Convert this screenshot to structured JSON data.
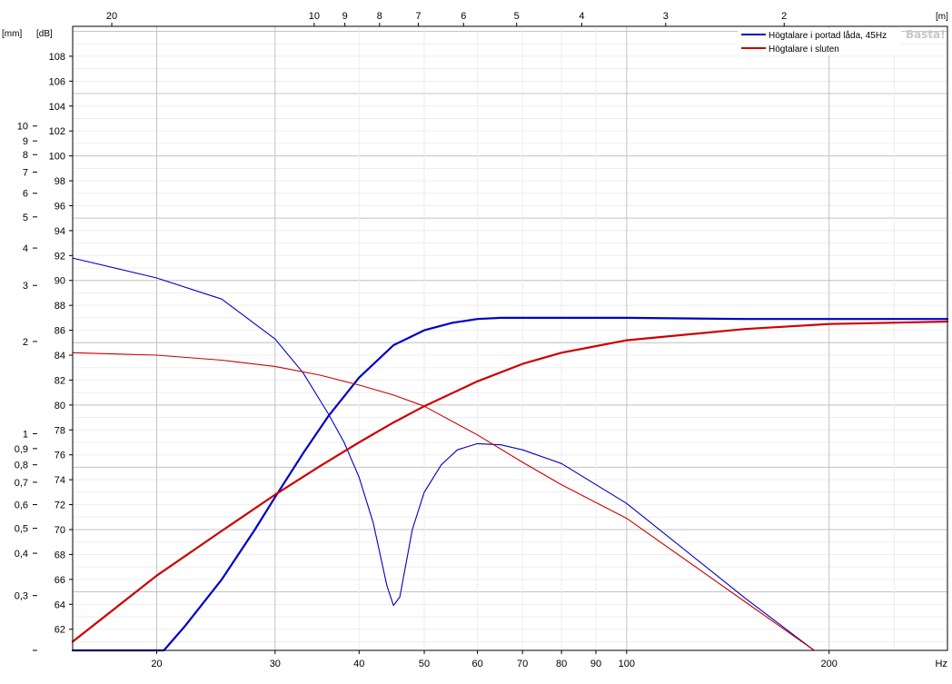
{
  "chart_data": {
    "type": "line",
    "x_scale": "log",
    "xlim": [
      15,
      300
    ],
    "ylim": [
      60.3,
      110.4
    ],
    "x_unit": "Hz",
    "y_unit": "[dB]",
    "y2_unit": "[mm]",
    "top_unit": "[m]",
    "x_ticks": [
      20,
      30,
      40,
      50,
      60,
      70,
      80,
      90,
      100,
      200
    ],
    "y_ticks": [
      62,
      64,
      66,
      68,
      70,
      72,
      74,
      76,
      78,
      80,
      82,
      84,
      86,
      88,
      90,
      92,
      94,
      96,
      98,
      100,
      102,
      104,
      106,
      108
    ],
    "y2_ticks": [
      {
        "label": "0,3",
        "db": 64.7
      },
      {
        "label": "0,4",
        "db": 68.1
      },
      {
        "label": "0,5",
        "db": 70.1
      },
      {
        "label": "0,6",
        "db": 72.0
      },
      {
        "label": "0,7",
        "db": 73.8
      },
      {
        "label": "0,8",
        "db": 75.2
      },
      {
        "label": "0,9",
        "db": 76.5
      },
      {
        "label": "1",
        "db": 77.7
      },
      {
        "label": "2",
        "db": 85.1
      },
      {
        "label": "3",
        "db": 89.6
      },
      {
        "label": "4",
        "db": 92.6
      },
      {
        "label": "5",
        "db": 95.1
      },
      {
        "label": "6",
        "db": 97.0
      },
      {
        "label": "7",
        "db": 98.7
      },
      {
        "label": "8",
        "db": 100.1
      },
      {
        "label": "9",
        "db": 101.2
      },
      {
        "label": "10",
        "db": 102.4
      },
      {
        "label": "",
        "db": 60.3
      }
    ],
    "top_ticks": [
      {
        "label": "20",
        "hz": 17.15
      },
      {
        "label": "10",
        "hz": 34.3
      },
      {
        "label": "9",
        "hz": 38.1
      },
      {
        "label": "8",
        "hz": 42.9
      },
      {
        "label": "7",
        "hz": 49.0
      },
      {
        "label": "6",
        "hz": 57.2
      },
      {
        "label": "5",
        "hz": 68.6
      },
      {
        "label": "4",
        "hz": 85.75
      },
      {
        "label": "3",
        "hz": 114.3
      },
      {
        "label": "2",
        "hz": 171.5
      }
    ],
    "grid": true,
    "legend": "top-right",
    "watermark": "Basta!",
    "series": [
      {
        "name": "Högtalare i portad låda, 45Hz",
        "role": "spl",
        "color": "#0000c8",
        "x": [
          15,
          20.5,
          22,
          25,
          28,
          30,
          33,
          36,
          40,
          45,
          50,
          55,
          60,
          65,
          70,
          80,
          100,
          150,
          200,
          300
        ],
        "y": [
          60.3,
          60.3,
          62.2,
          66.0,
          70.0,
          72.6,
          76.1,
          79.1,
          82.2,
          84.8,
          86.0,
          86.6,
          86.9,
          87.0,
          87.0,
          87.0,
          87.0,
          86.9,
          86.9,
          86.9
        ]
      },
      {
        "name": "Högtalare i portad låda, 45Hz",
        "role": "excursion",
        "color": "#0000c8",
        "x": [
          15,
          20,
          25,
          30,
          33,
          36,
          38,
          40,
          42,
          44,
          45,
          46,
          48,
          50,
          53,
          56,
          60,
          65,
          70,
          80,
          100,
          150,
          190,
          300
        ],
        "y": [
          91.8,
          90.2,
          88.5,
          85.3,
          82.6,
          79.3,
          77.0,
          74.2,
          70.5,
          65.5,
          63.9,
          64.6,
          70.0,
          73.0,
          75.2,
          76.4,
          76.9,
          76.8,
          76.4,
          75.3,
          72.1,
          64.5,
          60.3,
          60.3
        ]
      },
      {
        "name": "Högtalare i sluten",
        "role": "spl",
        "color": "#cc0000",
        "x": [
          15,
          20,
          25,
          30,
          35,
          40,
          45,
          50,
          60,
          70,
          80,
          100,
          150,
          200,
          300
        ],
        "y": [
          61.0,
          66.3,
          69.9,
          72.8,
          75.1,
          77.0,
          78.6,
          79.9,
          81.9,
          83.3,
          84.2,
          85.2,
          86.1,
          86.5,
          86.7
        ]
      },
      {
        "name": "Högtalare i sluten",
        "role": "excursion",
        "color": "#cc0000",
        "x": [
          15,
          20,
          25,
          30,
          35,
          40,
          45,
          50,
          60,
          70,
          80,
          100,
          150,
          190,
          300
        ],
        "y": [
          84.2,
          84.0,
          83.6,
          83.1,
          82.4,
          81.6,
          80.8,
          79.9,
          77.6,
          75.4,
          73.6,
          70.9,
          64.2,
          60.3,
          60.3
        ]
      }
    ]
  }
}
